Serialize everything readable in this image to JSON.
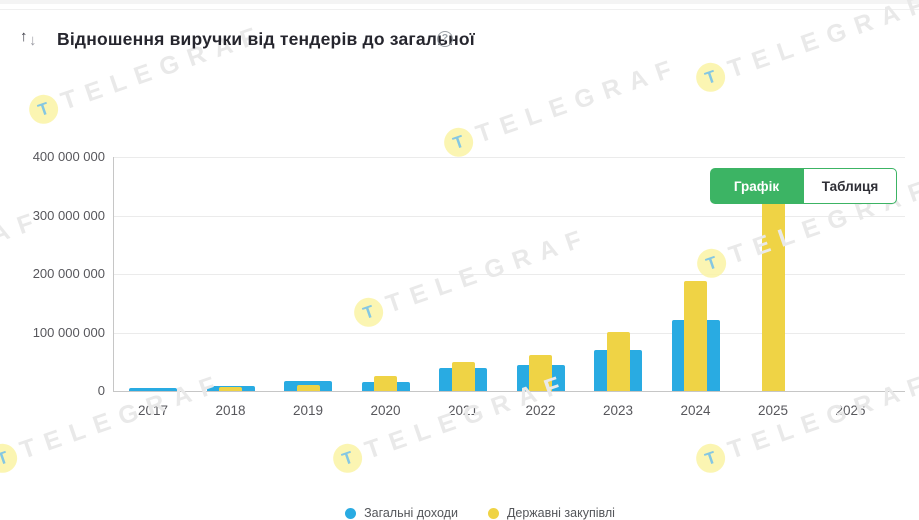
{
  "header": {
    "title": "Відношення виручки від тендерів до загальної",
    "sort_up": "↑",
    "sort_down": "↓",
    "help": "?"
  },
  "toggle": {
    "chart_label": "Графік",
    "table_label": "Таблиця",
    "active": "Графік",
    "accent_color": "#3cb464"
  },
  "watermark": {
    "text": "TELEGRAF",
    "logo_letter": "Т"
  },
  "chart_data": {
    "type": "bar",
    "title": "Відношення виручки від тендерів до загальної",
    "categories": [
      "2017",
      "2018",
      "2019",
      "2020",
      "2021",
      "2022",
      "2023",
      "2024",
      "2025",
      "2026"
    ],
    "series": [
      {
        "name": "Загальні доходи",
        "color": "#29abe2",
        "values": [
          5000000,
          8000000,
          17000000,
          15000000,
          40000000,
          44000000,
          70000000,
          121000000,
          0,
          0
        ]
      },
      {
        "name": "Державні закупівлі",
        "color": "#efd345",
        "values": [
          0,
          6000000,
          10000000,
          25000000,
          50000000,
          62000000,
          100000000,
          188000000,
          345000000,
          0
        ]
      }
    ],
    "xlabel": "",
    "ylabel": "",
    "ylim": [
      0,
      400000000
    ],
    "yticks": [
      "0",
      "100 000 000",
      "200 000 000",
      "300 000 000",
      "400 000 000"
    ],
    "grid": true,
    "legend_position": "bottom",
    "bar_style": "overlapping-centered"
  }
}
